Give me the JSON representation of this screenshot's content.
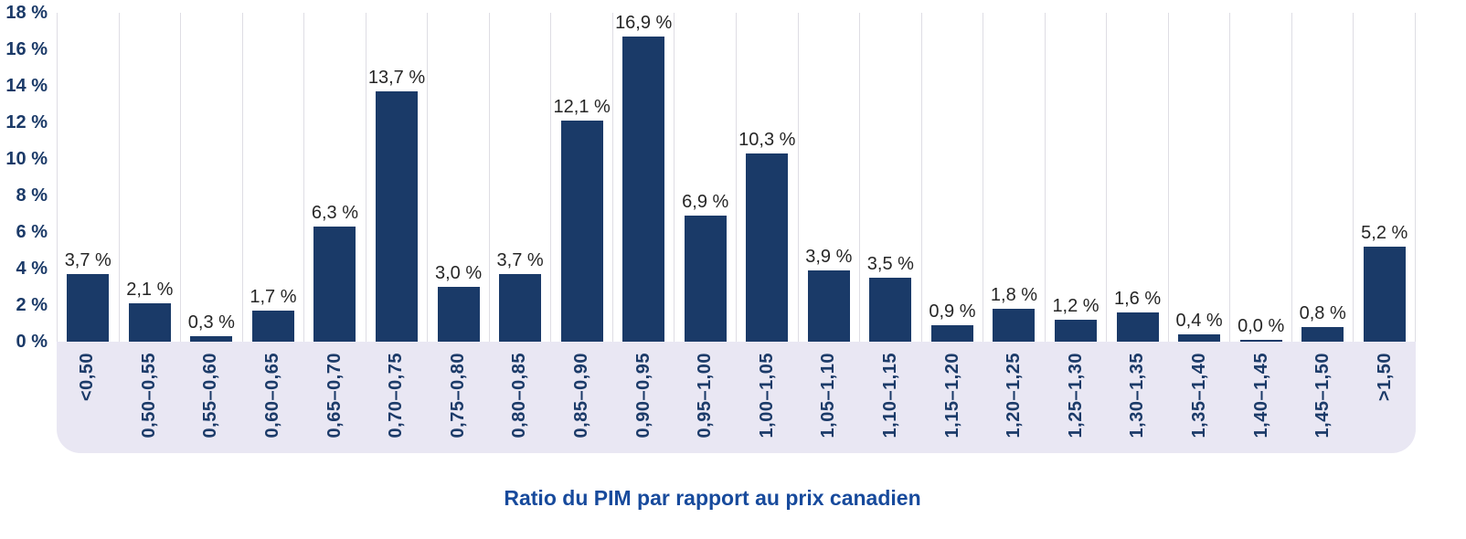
{
  "chart_data": {
    "type": "bar",
    "title": "",
    "xlabel": "Ratio du PIM par rapport au prix canadien",
    "ylabel": "",
    "ylim": [
      0,
      18
    ],
    "grid": "vertical-only",
    "legend": "none",
    "y_ticks": [
      0,
      2,
      4,
      6,
      8,
      10,
      12,
      14,
      16,
      18
    ],
    "y_tick_suffix": " %",
    "categories": [
      "<0,50",
      "0,50–0,55",
      "0,55–0,60",
      "0,60–0,65",
      "0,65–0,70",
      "0,70–0,75",
      "0,75–0,80",
      "0,80–0,85",
      "0,85–0,90",
      "0,90–0,95",
      "0,95–1,00",
      "1,00–1,05",
      "1,05–1,10",
      "1,10–1,15",
      "1,15–1,20",
      "1,20–1,25",
      "1,25–1,30",
      "1,30–1,35",
      "1,35–1,40",
      "1,40–1,45",
      "1,45–1,50",
      ">1,50"
    ],
    "values": [
      3.7,
      2.1,
      0.3,
      1.7,
      6.3,
      13.7,
      3.0,
      3.7,
      12.1,
      16.9,
      6.9,
      10.3,
      3.9,
      3.5,
      0.9,
      1.8,
      1.2,
      1.6,
      0.4,
      0.0,
      0.8,
      5.2
    ],
    "value_labels": [
      "3,7 %",
      "2,1 %",
      "0,3 %",
      "1,7 %",
      "6,3 %",
      "13,7 %",
      "3,0 %",
      "3,7 %",
      "12,1 %",
      "16,9 %",
      "6,9 %",
      "10,3 %",
      "3,9 %",
      "3,5 %",
      "0,9 %",
      "1,8 %",
      "1,2 %",
      "1,6 %",
      "0,4 %",
      "0,0 %",
      "0,8 %",
      "5,2 %"
    ],
    "colors": {
      "bar": "#1a3a68",
      "axis_text": "#1b3a68",
      "grid": "#dedde4",
      "band_background": "#e9e7f3",
      "value_label_text": "#262626",
      "title_text": "#174a9c"
    }
  }
}
